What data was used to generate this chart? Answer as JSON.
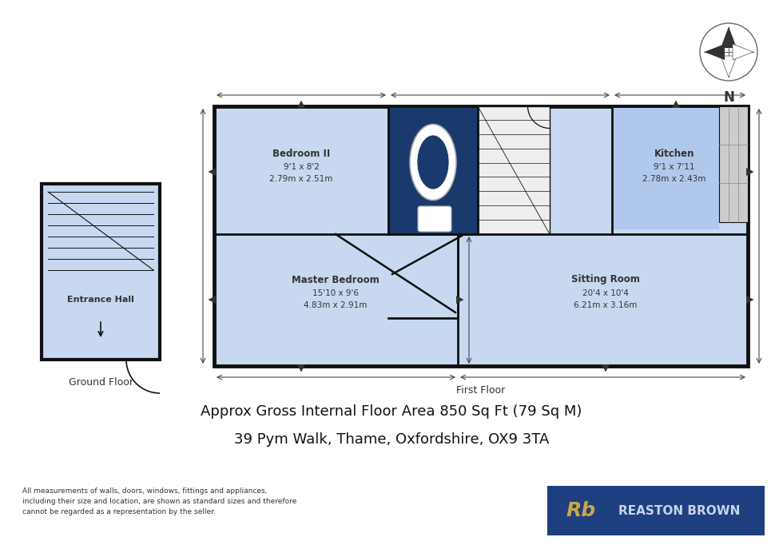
{
  "bg_color": "#ffffff",
  "room_fill": "#c8d8f0",
  "wall_color": "#111111",
  "dark_blue_fill": "#1a3a6e",
  "title1": "Approx Gross Internal Floor Area 850 Sq Ft (79 Sq M)",
  "title2": "39 Pym Walk, Thame, Oxfordshire, OX9 3TA",
  "footer_text": "All measurements of walls, doors, windows, fittings and appliances,\nincluding their size and location, are shown as standard sizes and therefore\ncannot be regarded as a representation by the seller.",
  "ground_floor_label": "Ground Floor",
  "first_floor_label": "First Floor",
  "logo_text1": "Rb",
  "logo_text2": "REASTON BROWN",
  "logo_color": "#1e3f80",
  "logo_r_color": "#c8a84b",
  "logo_text_color": "#c8d4e8",
  "compass_n_label": "N",
  "bedroom2_name": "Bedroom II",
  "bedroom2_dim1": "9'1 x 8'2",
  "bedroom2_dim2": "2.79m x 2.51m",
  "kitchen_name": "Kitchen",
  "kitchen_dim1": "9'1 x 7'11",
  "kitchen_dim2": "2.78m x 2.43m",
  "master_name": "Master Bedroom",
  "master_dim1": "15'10 x 9'6",
  "master_dim2": "4.83m x 2.91m",
  "sitting_name": "Sitting Room",
  "sitting_dim1": "20'4 x 10'4",
  "sitting_dim2": "6.21m x 3.16m",
  "entrance_name": "Entrance Hall"
}
